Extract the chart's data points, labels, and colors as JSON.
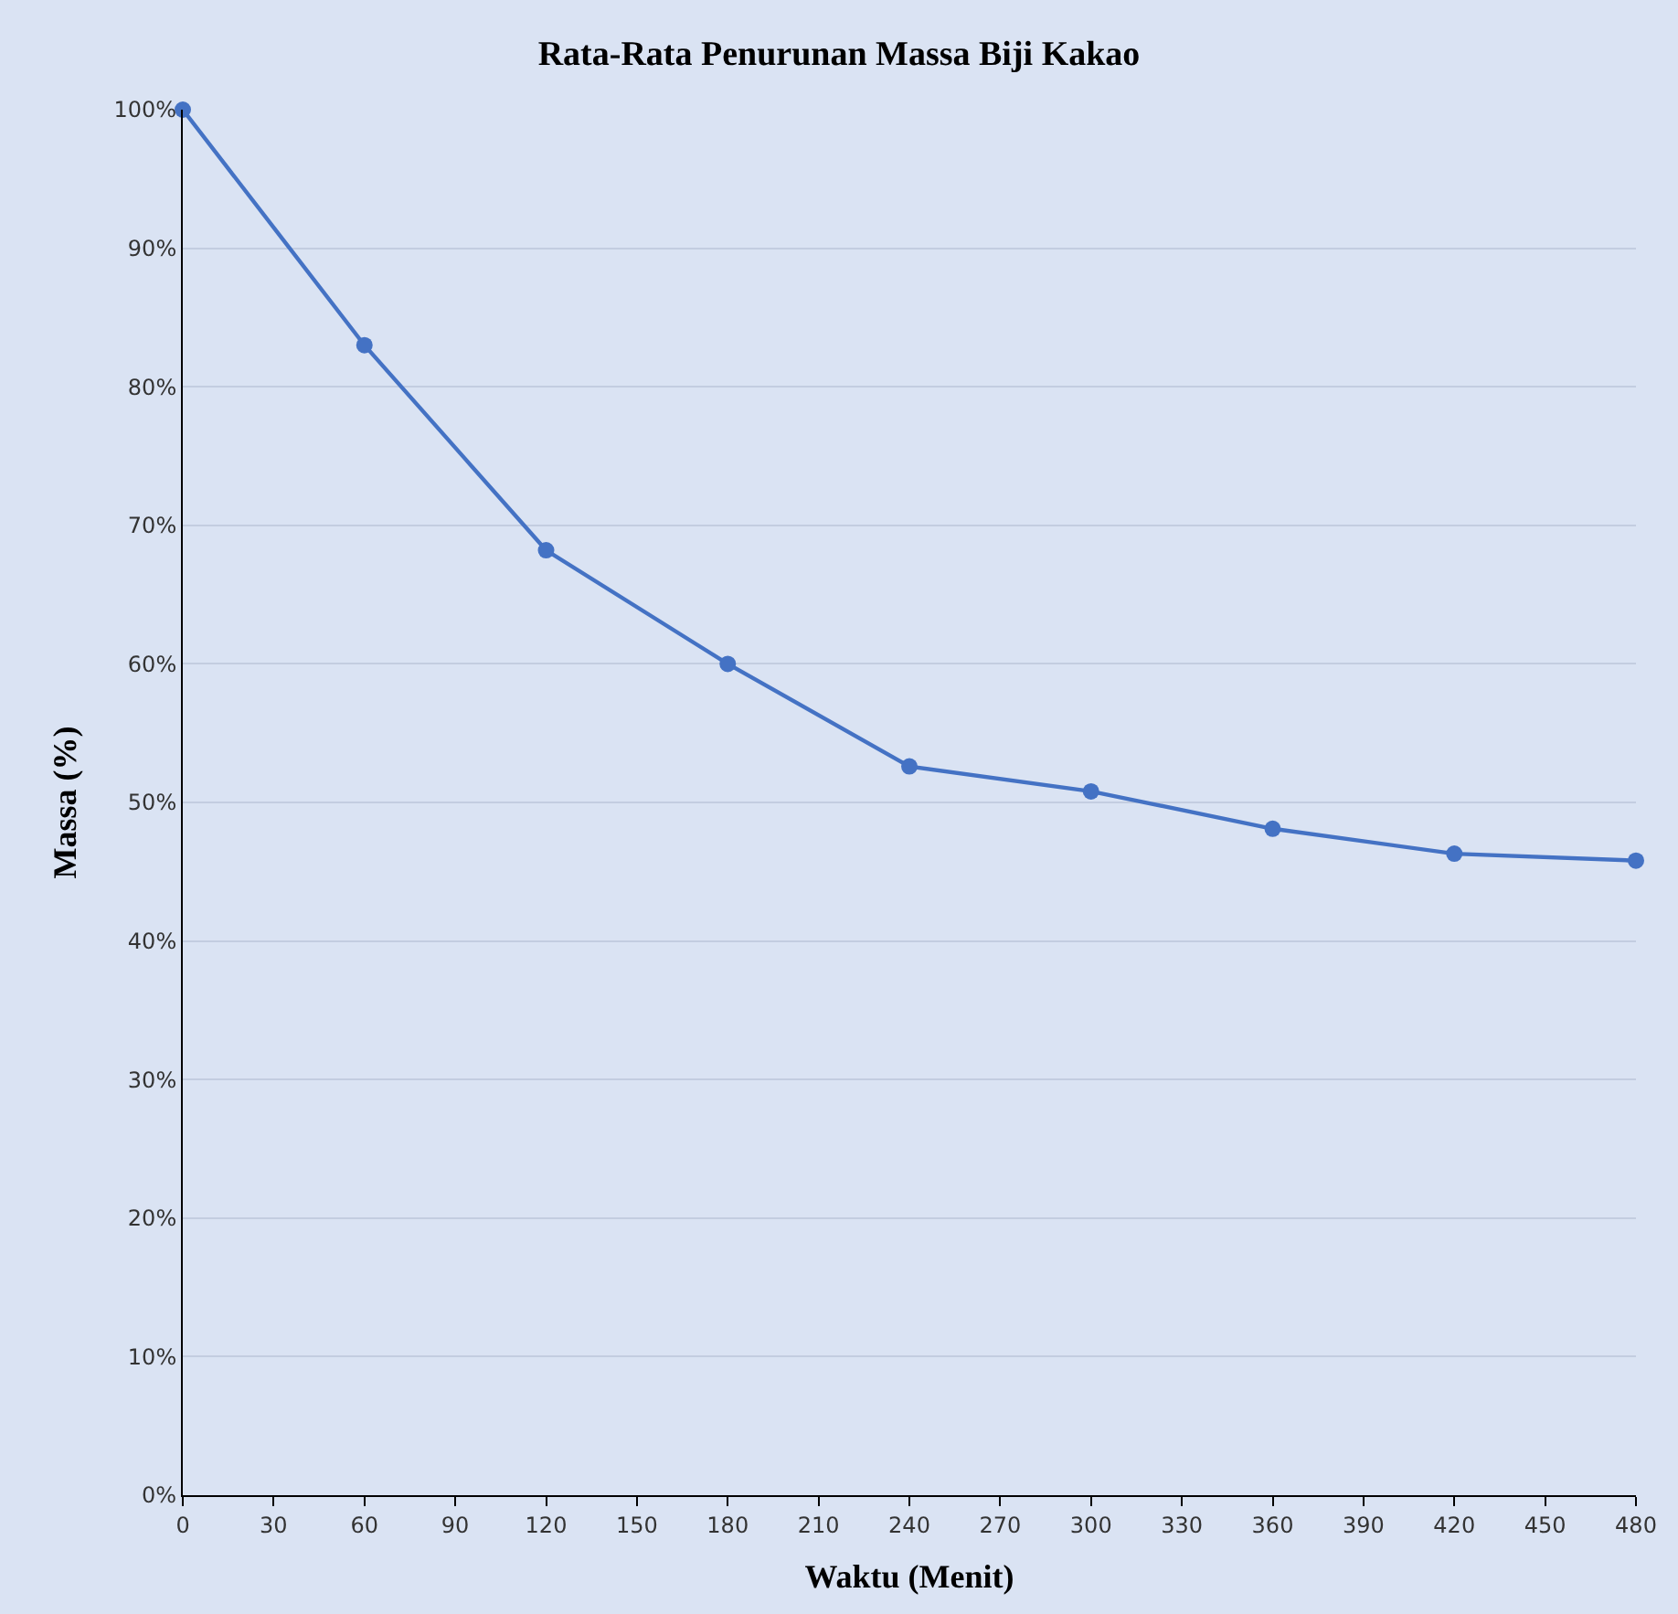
{
  "chart_data": {
    "type": "line",
    "title": "Rata-Rata Penurunan Massa Biji Kakao",
    "xlabel": "Waktu (Menit)",
    "ylabel": "Massa (%)",
    "x": [
      0,
      60,
      120,
      180,
      240,
      300,
      360,
      420,
      480
    ],
    "series": [
      {
        "color": "#4472c4",
        "values": [
          100,
          83,
          68.2,
          60,
          52.6,
          50.8,
          48.1,
          46.3,
          45.8
        ]
      }
    ],
    "xlim": [
      0,
      480
    ],
    "xticks": [
      0,
      30,
      60,
      90,
      120,
      150,
      180,
      210,
      240,
      270,
      300,
      330,
      360,
      390,
      420,
      450,
      480
    ],
    "ylim": [
      0,
      100
    ],
    "yticks": [
      {
        "value": 0,
        "label": "0%"
      },
      {
        "value": 10,
        "label": "10%"
      },
      {
        "value": 20,
        "label": "20%"
      },
      {
        "value": 30,
        "label": "30%"
      },
      {
        "value": 40,
        "label": "40%"
      },
      {
        "value": 50,
        "label": "50%"
      },
      {
        "value": 60,
        "label": "60%"
      },
      {
        "value": 70,
        "label": "70%"
      },
      {
        "value": 80,
        "label": "80%"
      },
      {
        "value": 90,
        "label": "90%"
      },
      {
        "value": 100,
        "label": "100%"
      }
    ],
    "grid": "y",
    "marker": "circle",
    "line_style": "solid"
  }
}
